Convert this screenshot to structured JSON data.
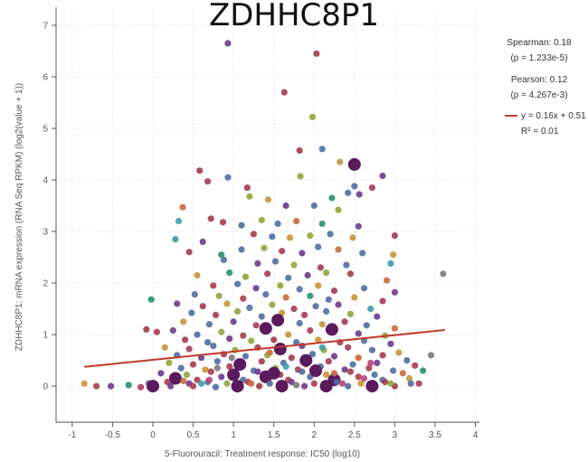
{
  "chart_data": {
    "type": "scatter",
    "title": "ZDHHC8P1",
    "xlabel": "5-Fluorouracil: Treatment response: IC50 (log10)",
    "ylabel": "ZDHHC8P1: mRNA expression (RNA Seq RPKM) (log2(value + 1))",
    "xlim": [
      -1.2,
      4.05
    ],
    "ylim": [
      -0.7,
      7.35
    ],
    "x_ticks": [
      -1,
      -0.5,
      0,
      0.5,
      1,
      1.5,
      2,
      2.5,
      3,
      3.5,
      4
    ],
    "x_tick_labels": [
      "-1",
      "-0.5",
      "0",
      "0.5",
      "1",
      "1.5",
      "2",
      "2.5",
      "3",
      "3.5",
      "4"
    ],
    "y_ticks": [
      0,
      1,
      2,
      3,
      4,
      5,
      6,
      7
    ],
    "y_tick_labels": [
      "0",
      "1",
      "2",
      "3",
      "4",
      "5",
      "6",
      "7"
    ],
    "grid": true,
    "legend_position": "right",
    "stats": {
      "spearman": "Spearman: 0.18",
      "spearman_p": "(p = 1.233e-5)",
      "pearson": "Pearson: 0.12",
      "pearson_p": "(p = 4.267e-3)",
      "fit_label": "y = 0.16x + 0.51",
      "r2_label": "R² = 0.01"
    },
    "fit_line": {
      "slope": 0.16,
      "intercept": 0.51,
      "x_start": -0.85,
      "x_end": 3.62,
      "color": "#c0392b"
    },
    "palette": [
      "#4e6ea1",
      "#2a8f6e",
      "#a43c4e",
      "#6d3a8c",
      "#c7943a",
      "#8fa63a",
      "#c96a3a",
      "#3a9fa6",
      "#7a7a7a",
      "#b8467a"
    ],
    "highlight_color": "#5b1a5e",
    "points": [
      [
        0.93,
        6.65,
        3,
        0
      ],
      [
        2.03,
        6.45,
        2,
        0
      ],
      [
        1.63,
        5.7,
        2,
        0
      ],
      [
        1.98,
        5.22,
        5,
        0
      ],
      [
        2.5,
        4.3,
        11,
        1
      ],
      [
        2.1,
        4.6,
        10,
        0
      ],
      [
        1.82,
        4.57,
        2,
        0
      ],
      [
        2.32,
        4.35,
        4,
        0
      ],
      [
        2.85,
        4.08,
        3,
        0
      ],
      [
        0.58,
        4.18,
        2,
        0
      ],
      [
        0.93,
        4.05,
        0,
        0
      ],
      [
        1.83,
        4.07,
        5,
        0
      ],
      [
        2.5,
        3.88,
        0,
        0
      ],
      [
        1.17,
        3.85,
        2,
        0
      ],
      [
        2.72,
        3.85,
        2,
        0
      ],
      [
        0.68,
        3.97,
        2,
        0
      ],
      [
        1.2,
        3.68,
        5,
        0
      ],
      [
        1.43,
        3.62,
        4,
        0
      ],
      [
        2.42,
        3.75,
        0,
        0
      ],
      [
        0.37,
        3.47,
        6,
        0
      ],
      [
        2.56,
        3.72,
        3,
        0
      ],
      [
        2.22,
        3.65,
        1,
        0
      ],
      [
        1.65,
        3.5,
        3,
        0
      ],
      [
        2.0,
        3.5,
        0,
        0
      ],
      [
        2.3,
        3.42,
        5,
        0
      ],
      [
        0.72,
        3.25,
        2,
        0
      ],
      [
        0.32,
        3.2,
        7,
        0
      ],
      [
        0.87,
        3.18,
        2,
        0
      ],
      [
        1.1,
        3.12,
        0,
        0
      ],
      [
        1.55,
        3.15,
        0,
        0
      ],
      [
        1.35,
        3.22,
        5,
        0
      ],
      [
        1.78,
        3.2,
        6,
        0
      ],
      [
        2.1,
        3.15,
        1,
        0
      ],
      [
        2.55,
        3.1,
        3,
        0
      ],
      [
        0.28,
        2.85,
        7,
        0
      ],
      [
        0.62,
        2.8,
        3,
        0
      ],
      [
        1.25,
        2.95,
        2,
        0
      ],
      [
        1.48,
        2.9,
        0,
        0
      ],
      [
        1.7,
        2.88,
        4,
        0
      ],
      [
        1.95,
        2.92,
        5,
        0
      ],
      [
        2.2,
        2.95,
        0,
        0
      ],
      [
        2.48,
        2.88,
        4,
        0
      ],
      [
        3.0,
        2.92,
        2,
        0
      ],
      [
        0.45,
        2.6,
        2,
        0
      ],
      [
        0.85,
        2.55,
        1,
        0
      ],
      [
        1.1,
        2.65,
        0,
        0
      ],
      [
        1.38,
        2.68,
        5,
        0
      ],
      [
        1.6,
        2.62,
        2,
        0
      ],
      [
        1.85,
        2.58,
        3,
        0
      ],
      [
        2.05,
        2.7,
        0,
        0
      ],
      [
        2.3,
        2.65,
        6,
        0
      ],
      [
        2.6,
        2.58,
        0,
        0
      ],
      [
        2.98,
        2.55,
        4,
        0
      ],
      [
        0.88,
        2.45,
        0,
        0
      ],
      [
        1.3,
        2.38,
        3,
        0
      ],
      [
        1.52,
        2.42,
        0,
        0
      ],
      [
        1.75,
        2.35,
        5,
        0
      ],
      [
        2.08,
        2.3,
        2,
        0
      ],
      [
        2.4,
        2.35,
        0,
        0
      ],
      [
        2.95,
        2.38,
        7,
        0
      ],
      [
        3.6,
        2.18,
        8,
        0
      ],
      [
        0.55,
        2.15,
        4,
        0
      ],
      [
        0.95,
        2.2,
        1,
        0
      ],
      [
        1.15,
        2.12,
        5,
        0
      ],
      [
        1.42,
        2.18,
        2,
        0
      ],
      [
        1.68,
        2.1,
        0,
        0
      ],
      [
        1.92,
        2.15,
        3,
        0
      ],
      [
        2.15,
        2.2,
        5,
        0
      ],
      [
        2.45,
        2.18,
        2,
        0
      ],
      [
        2.9,
        2.05,
        6,
        0
      ],
      [
        0.75,
        1.95,
        2,
        0
      ],
      [
        1.05,
        1.98,
        0,
        0
      ],
      [
        1.28,
        1.9,
        3,
        0
      ],
      [
        1.58,
        1.95,
        5,
        0
      ],
      [
        1.82,
        1.88,
        0,
        0
      ],
      [
        2.05,
        1.95,
        4,
        0
      ],
      [
        2.25,
        1.85,
        2,
        0
      ],
      [
        2.62,
        1.9,
        0,
        0
      ],
      [
        3.0,
        1.82,
        3,
        0
      ],
      [
        0.52,
        1.78,
        0,
        0
      ],
      [
        0.82,
        1.75,
        5,
        0
      ],
      [
        1.12,
        1.7,
        2,
        0
      ],
      [
        1.4,
        1.78,
        0,
        0
      ],
      [
        1.65,
        1.72,
        6,
        0
      ],
      [
        1.95,
        1.75,
        1,
        0
      ],
      [
        2.18,
        1.68,
        0,
        0
      ],
      [
        2.5,
        1.72,
        4,
        0
      ],
      [
        2.85,
        1.65,
        2,
        0
      ],
      [
        -0.02,
        1.68,
        1,
        0
      ],
      [
        0.3,
        1.6,
        3,
        0
      ],
      [
        0.62,
        1.55,
        2,
        0
      ],
      [
        0.92,
        1.6,
        4,
        0
      ],
      [
        1.2,
        1.52,
        0,
        0
      ],
      [
        1.48,
        1.58,
        5,
        0
      ],
      [
        1.75,
        1.5,
        2,
        0
      ],
      [
        2.02,
        1.55,
        0,
        0
      ],
      [
        2.3,
        1.58,
        3,
        0
      ],
      [
        2.7,
        1.5,
        7,
        0
      ],
      [
        0.48,
        1.42,
        0,
        0
      ],
      [
        0.78,
        1.38,
        2,
        0
      ],
      [
        1.05,
        1.45,
        5,
        0
      ],
      [
        1.35,
        1.35,
        0,
        0
      ],
      [
        1.6,
        1.42,
        4,
        0
      ],
      [
        1.88,
        1.38,
        2,
        0
      ],
      [
        2.15,
        1.45,
        0,
        0
      ],
      [
        2.45,
        1.4,
        5,
        0
      ],
      [
        2.78,
        1.35,
        3,
        0
      ],
      [
        -0.08,
        1.1,
        2,
        0
      ],
      [
        0.38,
        1.25,
        4,
        0
      ],
      [
        0.7,
        1.2,
        0,
        0
      ],
      [
        1.0,
        1.25,
        3,
        0
      ],
      [
        1.28,
        1.18,
        2,
        0
      ],
      [
        1.55,
        1.28,
        5,
        1
      ],
      [
        1.82,
        1.22,
        0,
        0
      ],
      [
        2.1,
        1.2,
        4,
        0
      ],
      [
        2.38,
        1.25,
        2,
        0
      ],
      [
        2.65,
        1.18,
        0,
        0
      ],
      [
        3.0,
        1.12,
        6,
        0
      ],
      [
        0.05,
        1.05,
        2,
        0
      ],
      [
        0.25,
        1.08,
        3,
        0
      ],
      [
        0.55,
        1.0,
        0,
        0
      ],
      [
        0.85,
        1.05,
        5,
        0
      ],
      [
        1.12,
        0.98,
        2,
        0
      ],
      [
        1.4,
        1.12,
        0,
        1
      ],
      [
        1.68,
        1.0,
        4,
        0
      ],
      [
        1.95,
        1.08,
        2,
        0
      ],
      [
        2.22,
        1.1,
        0,
        1
      ],
      [
        2.55,
        1.02,
        3,
        0
      ],
      [
        2.88,
        0.98,
        5,
        0
      ],
      [
        0.4,
        0.9,
        2,
        0
      ],
      [
        0.68,
        0.85,
        0,
        0
      ],
      [
        0.95,
        0.92,
        3,
        0
      ],
      [
        1.22,
        0.88,
        5,
        0
      ],
      [
        1.5,
        0.9,
        2,
        0
      ],
      [
        1.78,
        0.85,
        0,
        0
      ],
      [
        2.05,
        0.9,
        4,
        0
      ],
      [
        2.32,
        0.85,
        2,
        0
      ],
      [
        2.62,
        0.88,
        0,
        0
      ],
      [
        2.95,
        0.82,
        3,
        0
      ],
      [
        0.15,
        0.75,
        4,
        0
      ],
      [
        0.45,
        0.72,
        2,
        0
      ],
      [
        0.75,
        0.78,
        0,
        0
      ],
      [
        1.02,
        0.7,
        5,
        0
      ],
      [
        1.3,
        0.75,
        2,
        0
      ],
      [
        1.58,
        0.72,
        0,
        1
      ],
      [
        1.85,
        0.78,
        3,
        0
      ],
      [
        2.12,
        0.7,
        5,
        0
      ],
      [
        2.42,
        0.75,
        2,
        0
      ],
      [
        2.72,
        0.7,
        0,
        0
      ],
      [
        3.05,
        0.65,
        4,
        0
      ],
      [
        0.3,
        0.6,
        0,
        0
      ],
      [
        0.6,
        0.55,
        3,
        0
      ],
      [
        0.88,
        0.62,
        2,
        0
      ],
      [
        1.15,
        0.58,
        0,
        0
      ],
      [
        1.42,
        0.6,
        5,
        0
      ],
      [
        1.72,
        0.55,
        2,
        0
      ],
      [
        1.98,
        0.62,
        0,
        0
      ],
      [
        2.25,
        0.58,
        3,
        0
      ],
      [
        2.55,
        0.55,
        6,
        0
      ],
      [
        2.85,
        0.6,
        2,
        0
      ],
      [
        3.15,
        0.5,
        0,
        0
      ],
      [
        0.2,
        0.45,
        5,
        0
      ],
      [
        0.5,
        0.42,
        2,
        0
      ],
      [
        0.8,
        0.48,
        0,
        0
      ],
      [
        1.08,
        0.42,
        3,
        1
      ],
      [
        1.35,
        0.48,
        2,
        0
      ],
      [
        1.62,
        0.45,
        0,
        0
      ],
      [
        1.9,
        0.42,
        4,
        0
      ],
      [
        2.18,
        0.48,
        2,
        0
      ],
      [
        2.48,
        0.42,
        0,
        0
      ],
      [
        2.78,
        0.45,
        3,
        0
      ],
      [
        3.25,
        0.4,
        2,
        0
      ],
      [
        0.35,
        0.35,
        0,
        0
      ],
      [
        0.65,
        0.32,
        4,
        0
      ],
      [
        0.95,
        0.38,
        2,
        0
      ],
      [
        1.25,
        0.3,
        0,
        0
      ],
      [
        1.52,
        0.35,
        5,
        0
      ],
      [
        1.8,
        0.32,
        2,
        0
      ],
      [
        2.08,
        0.38,
        0,
        0
      ],
      [
        2.38,
        0.32,
        3,
        0
      ],
      [
        2.68,
        0.35,
        2,
        0
      ],
      [
        2.98,
        0.3,
        0,
        0
      ],
      [
        0.1,
        0.25,
        3,
        0
      ],
      [
        0.42,
        0.22,
        5,
        0
      ],
      [
        0.72,
        0.28,
        2,
        0
      ],
      [
        1.0,
        0.22,
        0,
        1
      ],
      [
        1.3,
        0.28,
        3,
        0
      ],
      [
        1.58,
        0.22,
        2,
        0
      ],
      [
        1.85,
        0.28,
        0,
        0
      ],
      [
        2.15,
        0.22,
        4,
        0
      ],
      [
        2.45,
        0.28,
        2,
        0
      ],
      [
        2.75,
        0.22,
        0,
        0
      ],
      [
        3.1,
        0.25,
        6,
        0
      ],
      [
        0.28,
        0.15,
        0,
        1
      ],
      [
        0.55,
        0.12,
        2,
        0
      ],
      [
        0.85,
        0.18,
        3,
        0
      ],
      [
        1.12,
        0.12,
        0,
        0
      ],
      [
        1.4,
        0.18,
        5,
        1
      ],
      [
        1.68,
        0.12,
        2,
        0
      ],
      [
        1.95,
        0.18,
        0,
        0
      ],
      [
        2.25,
        0.12,
        3,
        1
      ],
      [
        2.55,
        0.18,
        2,
        0
      ],
      [
        2.85,
        0.12,
        0,
        0
      ],
      [
        3.18,
        0.15,
        4,
        0
      ],
      [
        -0.05,
        0.05,
        0,
        0
      ],
      [
        0.18,
        0.08,
        2,
        0
      ],
      [
        0.45,
        0.05,
        3,
        0
      ],
      [
        0.68,
        0.08,
        0,
        0
      ],
      [
        0.92,
        0.05,
        5,
        0
      ],
      [
        1.18,
        0.08,
        2,
        0
      ],
      [
        1.45,
        0.05,
        0,
        0
      ],
      [
        1.72,
        0.08,
        3,
        0
      ],
      [
        2.0,
        0.05,
        2,
        0
      ],
      [
        2.28,
        0.08,
        0,
        0
      ],
      [
        2.58,
        0.05,
        4,
        0
      ],
      [
        2.88,
        0.08,
        2,
        0
      ],
      [
        3.2,
        0.05,
        0,
        0
      ],
      [
        -0.85,
        0.05,
        4,
        0
      ],
      [
        -0.7,
        0.0,
        2,
        0
      ],
      [
        -0.52,
        0.0,
        3,
        0
      ],
      [
        -0.3,
        0.02,
        1,
        0
      ],
      [
        -0.15,
        -0.02,
        2,
        0
      ],
      [
        0.0,
        0.0,
        0,
        1
      ],
      [
        0.22,
        0.0,
        3,
        0
      ],
      [
        0.5,
        0.0,
        2,
        0
      ],
      [
        0.78,
        -0.02,
        0,
        0
      ],
      [
        1.05,
        0.0,
        5,
        1
      ],
      [
        1.32,
        0.0,
        2,
        0
      ],
      [
        1.6,
        0.0,
        0,
        1
      ],
      [
        1.88,
        0.0,
        3,
        0
      ],
      [
        2.15,
        0.0,
        2,
        1
      ],
      [
        2.42,
        0.0,
        0,
        0
      ],
      [
        2.72,
        0.0,
        4,
        1
      ],
      [
        3.0,
        0.0,
        2,
        0
      ],
      [
        0.6,
        0.05,
        7,
        0
      ],
      [
        1.22,
        0.05,
        6,
        0
      ],
      [
        1.78,
        0.02,
        8,
        0
      ],
      [
        2.35,
        0.05,
        9,
        0
      ],
      [
        2.95,
        0.05,
        5,
        0
      ],
      [
        0.38,
        0.1,
        6,
        0
      ],
      [
        1.5,
        0.25,
        7,
        1
      ],
      [
        2.02,
        0.3,
        8,
        1
      ],
      [
        2.62,
        0.15,
        9,
        0
      ],
      [
        0.8,
        0.35,
        8,
        0
      ],
      [
        1.9,
        0.5,
        9,
        1
      ],
      [
        3.35,
        0.3,
        1,
        0
      ],
      [
        3.45,
        0.6,
        8,
        0
      ],
      [
        3.3,
        0.05,
        2,
        0
      ],
      [
        1.45,
        0.65,
        6,
        0
      ],
      [
        2.1,
        0.75,
        7,
        0
      ],
      [
        0.98,
        0.55,
        8,
        0
      ],
      [
        2.7,
        0.45,
        9,
        0
      ],
      [
        1.65,
        0.38,
        7,
        0
      ],
      [
        2.25,
        0.25,
        6,
        0
      ],
      [
        0.7,
        0.12,
        9,
        0
      ]
    ]
  }
}
